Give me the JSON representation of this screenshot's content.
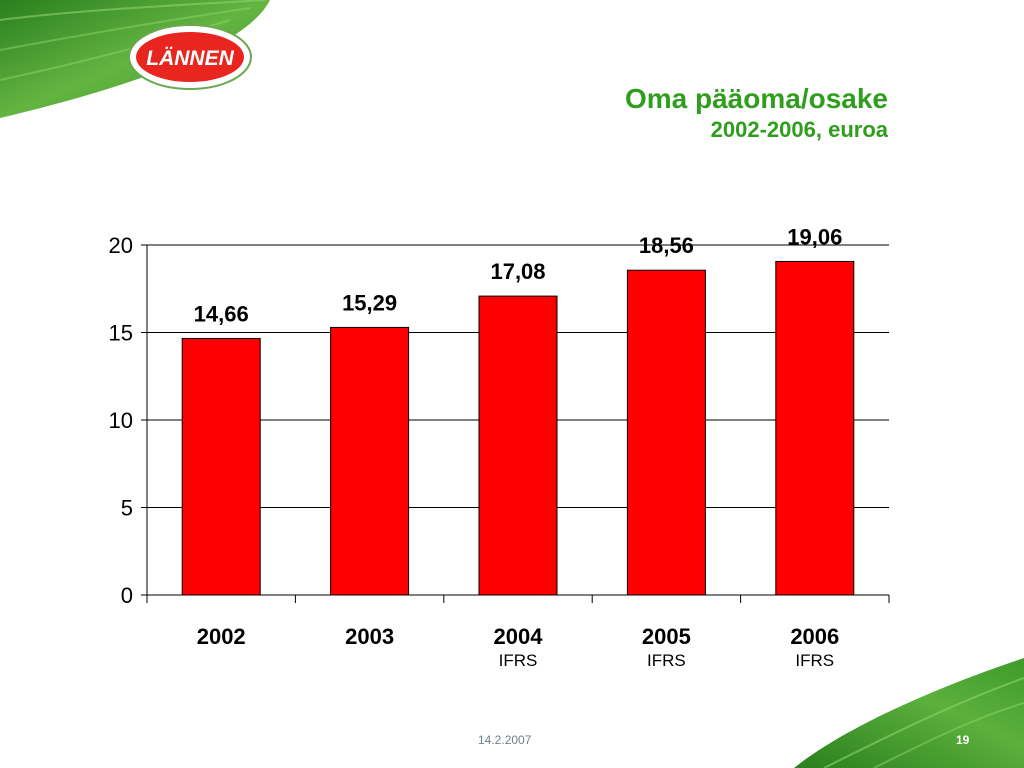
{
  "logo": {
    "text": "LÄNNEN"
  },
  "title": {
    "main": "Oma pääoma/osake",
    "sub": "2002-2006, euroa"
  },
  "colors": {
    "bar": "#ff0000",
    "title": "#2f9e1c",
    "leaf": "#3e9b2a"
  },
  "chart_data": {
    "type": "bar",
    "categories": [
      "2002",
      "2003",
      "2004",
      "2005",
      "2006"
    ],
    "sublabels": [
      "",
      "",
      "IFRS",
      "IFRS",
      "IFRS"
    ],
    "values": [
      14.66,
      15.29,
      17.08,
      18.56,
      19.06
    ],
    "data_labels": [
      "14,66",
      "15,29",
      "17,08",
      "18,56",
      "19,06"
    ],
    "yticks": [
      "0",
      "5",
      "10",
      "15",
      "20"
    ],
    "ylim": [
      0,
      20
    ],
    "grid": true
  },
  "footer": {
    "date": "14.2.2007",
    "page": "19"
  }
}
